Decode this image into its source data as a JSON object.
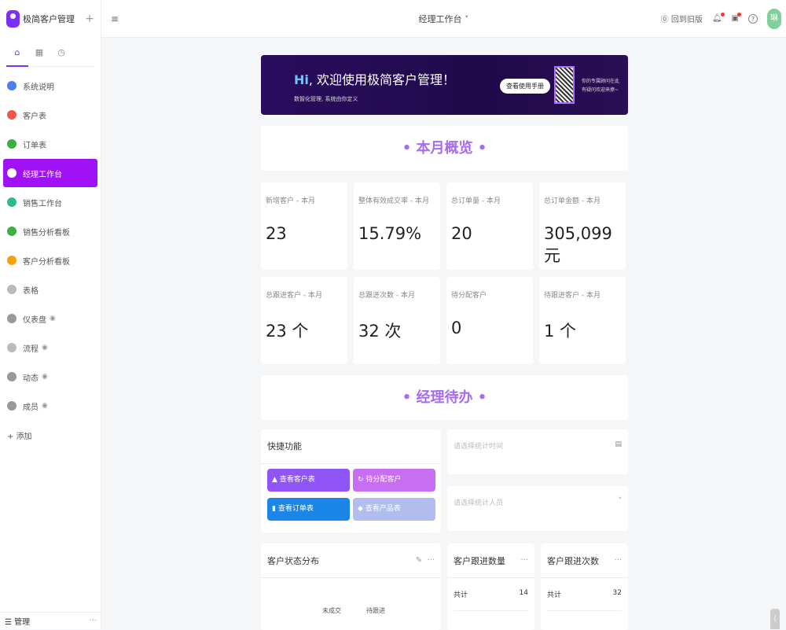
{
  "app": {
    "title": "极简客户管理",
    "add": "+"
  },
  "sidebar": {
    "tabs": [
      {
        "icon": "home-icon",
        "glyph": "⌂"
      },
      {
        "icon": "grid-icon",
        "glyph": "▦"
      },
      {
        "icon": "clock-icon",
        "glyph": "◷"
      }
    ],
    "items": [
      {
        "label": "系统说明",
        "color": "#4c7cf6",
        "eye": ""
      },
      {
        "label": "客户表",
        "color": "#f2574c",
        "eye": ""
      },
      {
        "label": "订单表",
        "color": "#3cb043",
        "eye": ""
      },
      {
        "label": "经理工作台",
        "color": "#ffffff",
        "eye": "",
        "active": true
      },
      {
        "label": "销售工作台",
        "color": "#2fb894",
        "eye": ""
      },
      {
        "label": "销售分析看板",
        "color": "#3cb043",
        "eye": ""
      },
      {
        "label": "客户分析看板",
        "color": "#f7a10a",
        "eye": ""
      },
      {
        "label": "表格",
        "color": "#bbbbbb",
        "eye": ""
      },
      {
        "label": "仪表盘",
        "color": "#999999",
        "eye": "◉"
      },
      {
        "label": "流程",
        "color": "#bbbbbb",
        "eye": "◉"
      },
      {
        "label": "动态",
        "color": "#999999",
        "eye": "◉"
      },
      {
        "label": "成员",
        "color": "#999999",
        "eye": "◉"
      }
    ],
    "add_label": "+ 添加",
    "manage_label": "☰ 管理",
    "more": "···"
  },
  "header": {
    "menu": "≡",
    "title": "经理工作台 ˅",
    "back_old": "⓪ 回到旧版",
    "avatar": "琳",
    "help": "?"
  },
  "banner": {
    "hi": "Hi",
    "title": ", 欢迎使用极简客户管理！",
    "subtitle": "数智化管理, 系统由你定义",
    "button": "查看使用手册",
    "qr_text_1": "你的专属顾问在此",
    "qr_text_2": "有疑问欢迎来撩~"
  },
  "section1": "•  本月概览  •",
  "section2": "•  经理待办  •",
  "stats": [
    {
      "label": "新增客户 - 本月",
      "value": "23"
    },
    {
      "label": "整体有效成交率 - 本月",
      "value": "15.79%"
    },
    {
      "label": "总订单量 - 本月",
      "value": "20"
    },
    {
      "label": "总订单金额 - 本月",
      "value": "305,099 元"
    },
    {
      "label": "总跟进客户 - 本月",
      "value": "23 个"
    },
    {
      "label": "总跟进次数 - 本月",
      "value": "32 次"
    },
    {
      "label": "待分配客户",
      "value": "0"
    },
    {
      "label": "待跟进客户 - 本月",
      "value": "1 个"
    }
  ],
  "quick": {
    "title": "快捷功能",
    "buttons": [
      {
        "label": "▲ 查看客户表",
        "color": "#8f55f6"
      },
      {
        "label": "↻ 待分配客户",
        "color": "#c86ef2"
      },
      {
        "label": "▮ 查看订单表",
        "color": "#1b86e8"
      },
      {
        "label": "◆ 查看产品表",
        "color": "#b1bdee"
      }
    ]
  },
  "filters": {
    "time_placeholder": "请选择统计时间",
    "person_placeholder": "请选择统计人员"
  },
  "panels": {
    "status": {
      "title": "客户状态分布",
      "node1": "未成交",
      "node2": "待跟进"
    },
    "follow_count": {
      "title": "客户跟进数量",
      "total_label": "共计",
      "total": "14"
    },
    "follow_times": {
      "title": "客户跟进次数",
      "total_label": "共计",
      "total": "32"
    }
  }
}
